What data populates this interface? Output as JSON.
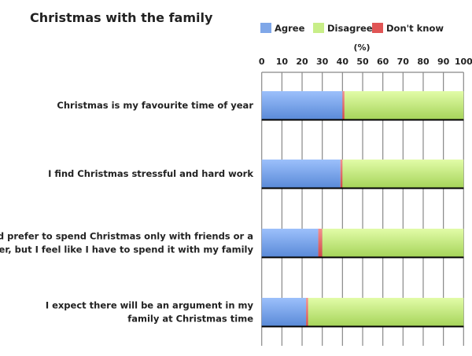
{
  "chart_data": {
    "type": "bar",
    "orientation": "horizontal",
    "stacked": true,
    "title": "Christmas with the family",
    "xlabel": "(%)",
    "xlim": [
      0,
      100
    ],
    "xticks": [
      "0",
      "10",
      "20",
      "30",
      "40",
      "50",
      "60",
      "70",
      "80",
      "90",
      "100"
    ],
    "grid": true,
    "legend_position": "top-right",
    "categories": [
      [
        "Christmas is my favourite time of year"
      ],
      [
        "I find Christmas stressful and hard work"
      ],
      [
        "I'd prefer to spend Christmas only with friends or a",
        "partner, but I feel like I have to spend it with my family"
      ],
      [
        "I expect there will be an argument in my",
        "family at Christmas time"
      ]
    ],
    "series": [
      {
        "name": "Agree",
        "color": "#7fa7e8",
        "values": [
          40,
          39,
          28,
          22
        ]
      },
      {
        "name": "Don't know",
        "color": "#e05555",
        "values": [
          1,
          1,
          2,
          1
        ]
      },
      {
        "name": "Disagree",
        "color": "#c8ee88",
        "values": [
          59,
          60,
          70,
          77
        ]
      }
    ],
    "legend": [
      "Agree",
      "Disagree",
      "Don't know"
    ]
  }
}
